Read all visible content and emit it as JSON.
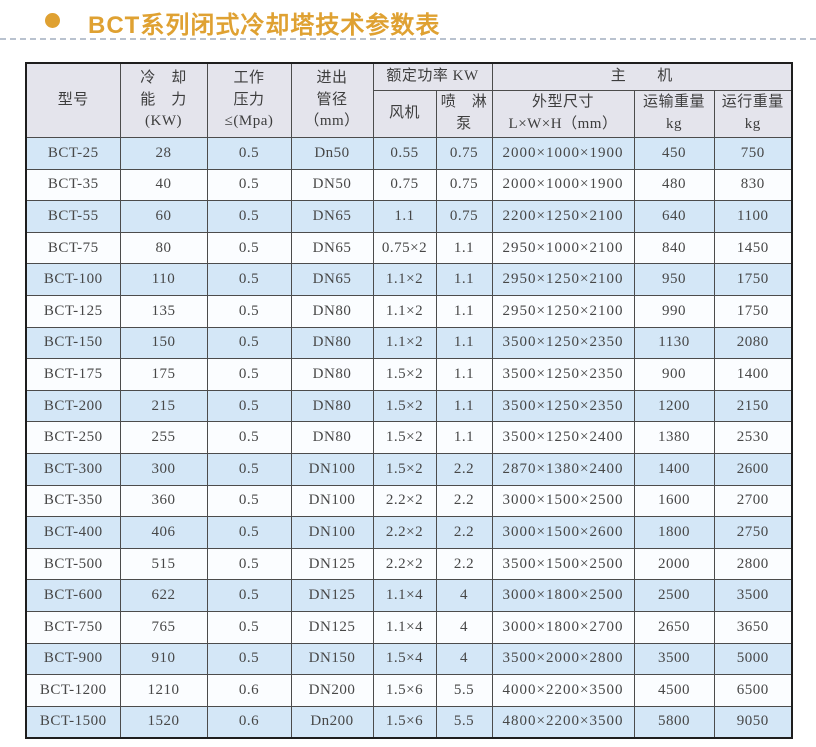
{
  "page": {
    "bullet_icon": "filled-circle",
    "title": "BCT系列闭式冷却塔技术参数表"
  },
  "colors": {
    "accent": "#dfa132",
    "divider": "#b9c2cf",
    "header_bg": "#e4e4ec",
    "row_alt_bg": "#d4e7f7",
    "row_bg": "#fbfdff",
    "border": "#4c4c4c"
  },
  "table": {
    "header": {
      "model": "型号",
      "cooling_capacity": "冷　却\n能　力\n(KW)",
      "working_pressure": "工作\n压力\n≤(Mpa)",
      "pipe_diameter": "进出\n管径\n（mm）",
      "rated_power": "额定功率 KW",
      "fan": "风机",
      "spray_pump": "喷　淋\n泵",
      "main_unit": "主　　机",
      "dimensions": "外型尺寸\nL×W×H（mm）",
      "transport_weight": "运输重量\nkg",
      "operating_weight": "运行重量\nkg"
    },
    "rows": [
      [
        "BCT-25",
        "28",
        "0.5",
        "Dn50",
        "0.55",
        "0.75",
        "2000×1000×1900",
        "450",
        "750"
      ],
      [
        "BCT-35",
        "40",
        "0.5",
        "DN50",
        "0.75",
        "0.75",
        "2000×1000×1900",
        "480",
        "830"
      ],
      [
        "BCT-55",
        "60",
        "0.5",
        "DN65",
        "1.1",
        "0.75",
        "2200×1250×2100",
        "640",
        "1100"
      ],
      [
        "BCT-75",
        "80",
        "0.5",
        "DN65",
        "0.75×2",
        "1.1",
        "2950×1000×2100",
        "840",
        "1450"
      ],
      [
        "BCT-100",
        "110",
        "0.5",
        "DN65",
        "1.1×2",
        "1.1",
        "2950×1250×2100",
        "950",
        "1750"
      ],
      [
        "BCT-125",
        "135",
        "0.5",
        "DN80",
        "1.1×2",
        "1.1",
        "2950×1250×2100",
        "990",
        "1750"
      ],
      [
        "BCT-150",
        "150",
        "0.5",
        "DN80",
        "1.1×2",
        "1.1",
        "3500×1250×2350",
        "1130",
        "2080"
      ],
      [
        "BCT-175",
        "175",
        "0.5",
        "DN80",
        "1.5×2",
        "1.1",
        "3500×1250×2350",
        "900",
        "1400"
      ],
      [
        "BCT-200",
        "215",
        "0.5",
        "DN80",
        "1.5×2",
        "1.1",
        "3500×1250×2350",
        "1200",
        "2150"
      ],
      [
        "BCT-250",
        "255",
        "0.5",
        "DN80",
        "1.5×2",
        "1.1",
        "3500×1250×2400",
        "1380",
        "2530"
      ],
      [
        "BCT-300",
        "300",
        "0.5",
        "DN100",
        "1.5×2",
        "2.2",
        "2870×1380×2400",
        "1400",
        "2600"
      ],
      [
        "BCT-350",
        "360",
        "0.5",
        "DN100",
        "2.2×2",
        "2.2",
        "3000×1500×2500",
        "1600",
        "2700"
      ],
      [
        "BCT-400",
        "406",
        "0.5",
        "DN100",
        "2.2×2",
        "2.2",
        "3000×1500×2600",
        "1800",
        "2750"
      ],
      [
        "BCT-500",
        "515",
        "0.5",
        "DN125",
        "2.2×2",
        "2.2",
        "3500×1500×2500",
        "2000",
        "2800"
      ],
      [
        "BCT-600",
        "622",
        "0.5",
        "DN125",
        "1.1×4",
        "4",
        "3000×1800×2500",
        "2500",
        "3500"
      ],
      [
        "BCT-750",
        "765",
        "0.5",
        "DN125",
        "1.1×4",
        "4",
        "3000×1800×2700",
        "2650",
        "3650"
      ],
      [
        "BCT-900",
        "910",
        "0.5",
        "DN150",
        "1.5×4",
        "4",
        "3500×2000×2800",
        "3500",
        "5000"
      ],
      [
        "BCT-1200",
        "1210",
        "0.6",
        "DN200",
        "1.5×6",
        "5.5",
        "4000×2200×3500",
        "4500",
        "6500"
      ],
      [
        "BCT-1500",
        "1520",
        "0.6",
        "Dn200",
        "1.5×6",
        "5.5",
        "4800×2200×3500",
        "5800",
        "9050"
      ]
    ]
  }
}
